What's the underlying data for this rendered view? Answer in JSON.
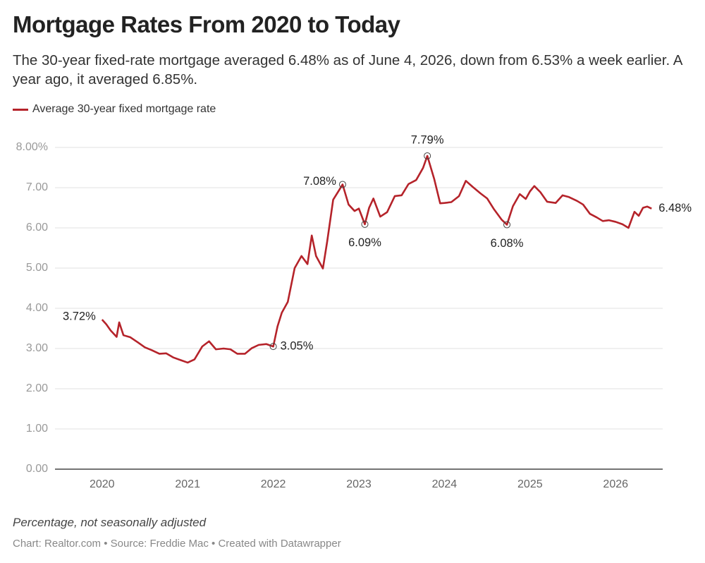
{
  "chart_data": {
    "type": "line",
    "title": "Mortgage Rates From 2020 to Today",
    "subtitle": "The 30-year fixed-rate mortgage averaged 6.48% as of June 4, 2026, down from 6.53% a week earlier. A year ago, it averaged 6.85%.",
    "note": "Percentage, not seasonally adjusted",
    "credit": "Chart: Realtor.com • Source: Freddie Mac • Created with Datawrapper",
    "x": [
      2020.0,
      2020.05,
      2020.1,
      2020.17,
      2020.2,
      2020.25,
      2020.33,
      2020.42,
      2020.5,
      2020.58,
      2020.67,
      2020.75,
      2020.83,
      2020.92,
      2021.0,
      2021.08,
      2021.17,
      2021.25,
      2021.33,
      2021.42,
      2021.5,
      2021.58,
      2021.67,
      2021.75,
      2021.83,
      2021.92,
      2022.0,
      2022.05,
      2022.1,
      2022.17,
      2022.25,
      2022.33,
      2022.4,
      2022.45,
      2022.5,
      2022.58,
      2022.63,
      2022.7,
      2022.77,
      2022.81,
      2022.88,
      2022.95,
      2023.0,
      2023.07,
      2023.12,
      2023.17,
      2023.25,
      2023.33,
      2023.42,
      2023.5,
      2023.58,
      2023.67,
      2023.75,
      2023.8,
      2023.88,
      2023.95,
      2024.0,
      2024.08,
      2024.17,
      2024.25,
      2024.33,
      2024.42,
      2024.5,
      2024.58,
      2024.67,
      2024.73,
      2024.8,
      2024.88,
      2024.95,
      2025.0,
      2025.05,
      2025.12,
      2025.2,
      2025.3,
      2025.38,
      2025.45,
      2025.55,
      2025.62,
      2025.7,
      2025.78,
      2025.85,
      2025.92,
      2026.0,
      2026.08,
      2026.15,
      2026.22,
      2026.27,
      2026.32,
      2026.37,
      2026.42
    ],
    "series": [
      {
        "name": "Average 30-year fixed mortgage rate",
        "color": "#b5232a",
        "values": [
          3.72,
          3.6,
          3.45,
          3.29,
          3.65,
          3.33,
          3.28,
          3.15,
          3.03,
          2.96,
          2.87,
          2.88,
          2.78,
          2.71,
          2.65,
          2.73,
          3.05,
          3.18,
          2.98,
          3.0,
          2.98,
          2.87,
          2.87,
          3.01,
          3.09,
          3.11,
          3.05,
          3.55,
          3.89,
          4.16,
          5.0,
          5.3,
          5.1,
          5.81,
          5.3,
          4.99,
          5.66,
          6.7,
          6.94,
          7.08,
          6.58,
          6.42,
          6.48,
          6.09,
          6.5,
          6.73,
          6.28,
          6.39,
          6.79,
          6.81,
          7.09,
          7.19,
          7.49,
          7.79,
          7.22,
          6.61,
          6.62,
          6.64,
          6.79,
          7.17,
          7.02,
          6.86,
          6.73,
          6.46,
          6.2,
          6.08,
          6.54,
          6.84,
          6.72,
          6.91,
          7.04,
          6.89,
          6.65,
          6.62,
          6.81,
          6.77,
          6.67,
          6.58,
          6.35,
          6.26,
          6.17,
          6.19,
          6.15,
          6.09,
          6.0,
          6.4,
          6.3,
          6.5,
          6.53,
          6.48
        ]
      }
    ],
    "annotations": [
      {
        "x": 2020.0,
        "value": 3.72,
        "label": "3.72%",
        "position": "left",
        "marker": false
      },
      {
        "x": 2022.0,
        "value": 3.05,
        "label": "3.05%",
        "position": "right",
        "marker": true
      },
      {
        "x": 2022.81,
        "value": 7.08,
        "label": "7.08%",
        "position": "left",
        "marker": true
      },
      {
        "x": 2023.07,
        "value": 6.09,
        "label": "6.09%",
        "position": "below",
        "marker": true
      },
      {
        "x": 2023.8,
        "value": 7.79,
        "label": "7.79%",
        "position": "above",
        "marker": true
      },
      {
        "x": 2024.73,
        "value": 6.08,
        "label": "6.08%",
        "position": "below",
        "marker": true
      },
      {
        "x": 2026.42,
        "value": 6.48,
        "label": "6.48%",
        "position": "right",
        "marker": false
      }
    ],
    "xlim": [
      2019.45,
      2026.55
    ],
    "xticks": [
      2020,
      2021,
      2022,
      2023,
      2024,
      2025,
      2026
    ],
    "ylim": [
      0,
      8
    ],
    "yticks": [
      {
        "value": 0,
        "label": "0.00"
      },
      {
        "value": 1,
        "label": "1.00"
      },
      {
        "value": 2,
        "label": "2.00"
      },
      {
        "value": 3,
        "label": "3.00"
      },
      {
        "value": 4,
        "label": "4.00"
      },
      {
        "value": 5,
        "label": "5.00"
      },
      {
        "value": 6,
        "label": "6.00"
      },
      {
        "value": 7,
        "label": "7.00"
      },
      {
        "value": 8,
        "label": "8.00%"
      }
    ],
    "grid": true,
    "legend": "top-left"
  }
}
